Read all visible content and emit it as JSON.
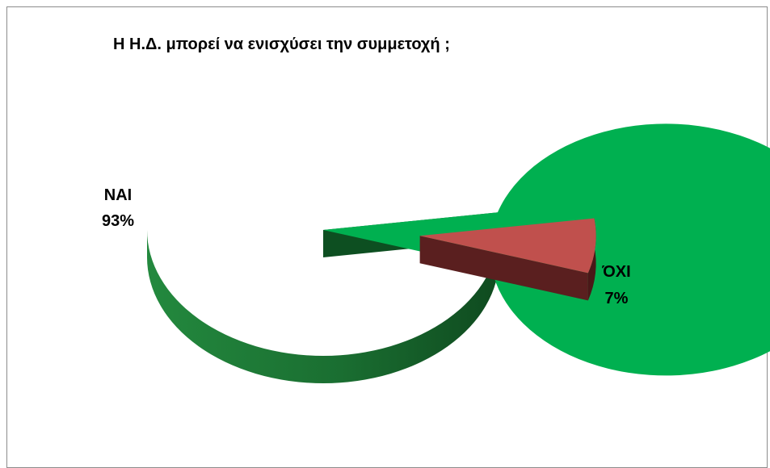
{
  "chart_data": {
    "type": "pie",
    "title": "Η Η.Δ. μπορεί να ενισχύσει την συμμετοχή ;",
    "categories": [
      "ΝΑΙ",
      "ΌΧΙ"
    ],
    "values": [
      93,
      7
    ],
    "value_labels": [
      "93%",
      "7%"
    ],
    "exploded": [
      false,
      true
    ],
    "three_d": true,
    "legend": "none",
    "colors": {
      "nai_top": "#00b050",
      "nai_side": "#1e7a36",
      "oxi_top": "#c0504d",
      "oxi_side": "#5a1f1f"
    }
  }
}
